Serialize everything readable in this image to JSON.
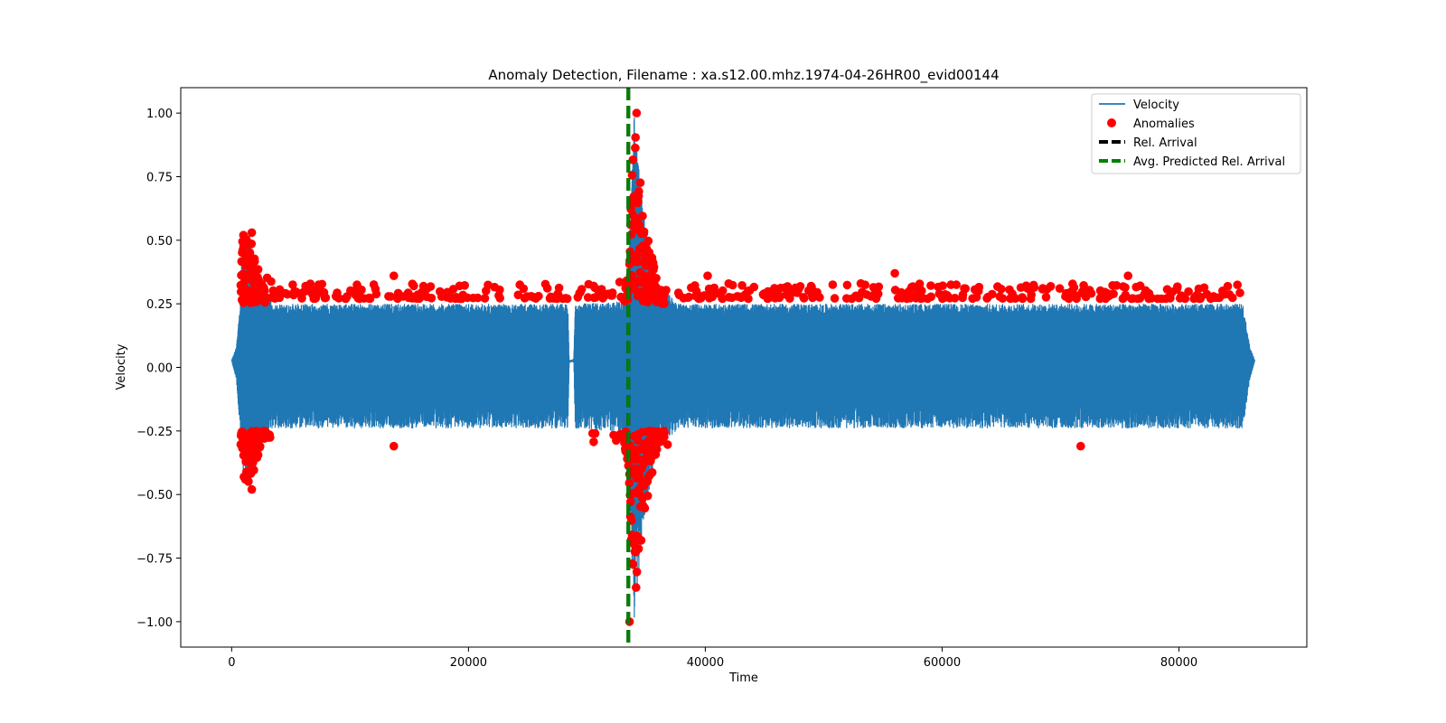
{
  "chart_data": {
    "type": "line",
    "title": "Anomaly Detection, Filename : xa.s12.00.mhz.1974-04-26HR00_evid00144",
    "xlabel": "Time",
    "ylabel": "Velocity",
    "xlim": [
      -4300,
      90800
    ],
    "ylim": [
      -1.1,
      1.1
    ],
    "xticks": [
      0,
      20000,
      40000,
      60000,
      80000
    ],
    "xtick_labels": [
      "0",
      "20000",
      "40000",
      "60000",
      "80000"
    ],
    "yticks": [
      -1.0,
      -0.75,
      -0.5,
      -0.25,
      0.0,
      0.25,
      0.5,
      0.75,
      1.0
    ],
    "ytick_labels": [
      "−1.00",
      "−0.75",
      "−0.50",
      "−0.25",
      "0.00",
      "0.25",
      "0.50",
      "0.75",
      "1.00"
    ],
    "grid": false,
    "legend_position": "top-right",
    "series": [
      {
        "name": "Velocity",
        "kind": "line",
        "color": "#1f77b4",
        "x_range": [
          0,
          86400
        ],
        "envelope": [
          {
            "x": 0,
            "max": 0.03,
            "min": 0.03
          },
          {
            "x": 400,
            "max": 0.08,
            "min": -0.05
          },
          {
            "x": 700,
            "max": 0.24,
            "min": -0.24
          },
          {
            "x": 900,
            "max": 0.5,
            "min": -0.43
          },
          {
            "x": 1500,
            "max": 0.52,
            "min": -0.48
          },
          {
            "x": 2500,
            "max": 0.34,
            "min": -0.3
          },
          {
            "x": 3500,
            "max": 0.25,
            "min": -0.24
          },
          {
            "x": 28400,
            "max": 0.25,
            "min": -0.24
          },
          {
            "x": 28500,
            "max": 0.03,
            "min": 0.03
          },
          {
            "x": 28900,
            "max": 0.03,
            "min": 0.03
          },
          {
            "x": 29000,
            "max": 0.25,
            "min": -0.24
          },
          {
            "x": 33000,
            "max": 0.26,
            "min": -0.26
          },
          {
            "x": 33500,
            "max": 0.4,
            "min": -0.4
          },
          {
            "x": 34000,
            "max": 1.0,
            "min": -1.0
          },
          {
            "x": 34800,
            "max": 0.6,
            "min": -0.6
          },
          {
            "x": 36000,
            "max": 0.32,
            "min": -0.3
          },
          {
            "x": 38000,
            "max": 0.25,
            "min": -0.24
          },
          {
            "x": 85400,
            "max": 0.25,
            "min": -0.24
          },
          {
            "x": 86000,
            "max": 0.08,
            "min": -0.05
          },
          {
            "x": 86400,
            "max": 0.03,
            "min": 0.03
          }
        ]
      },
      {
        "name": "Anomalies",
        "kind": "scatter",
        "color": "#ff0000",
        "threshold": 0.25,
        "notable_points": [
          {
            "x": 1000,
            "y": 0.52
          },
          {
            "x": 1700,
            "y": 0.53
          },
          {
            "x": 1700,
            "y": -0.48
          },
          {
            "x": 13700,
            "y": 0.36
          },
          {
            "x": 13700,
            "y": -0.31
          },
          {
            "x": 33600,
            "y": -1.0
          },
          {
            "x": 34200,
            "y": 1.0
          },
          {
            "x": 40200,
            "y": 0.36
          },
          {
            "x": 56000,
            "y": 0.37
          },
          {
            "x": 71700,
            "y": -0.31
          },
          {
            "x": 75700,
            "y": 0.36
          }
        ]
      },
      {
        "name": "Rel. Arrival",
        "kind": "vline",
        "color": "#000000",
        "x": 33500
      },
      {
        "name": "Avg. Predicted Rel. Arrival",
        "kind": "vline",
        "color": "#008000",
        "x": 33500
      }
    ]
  }
}
